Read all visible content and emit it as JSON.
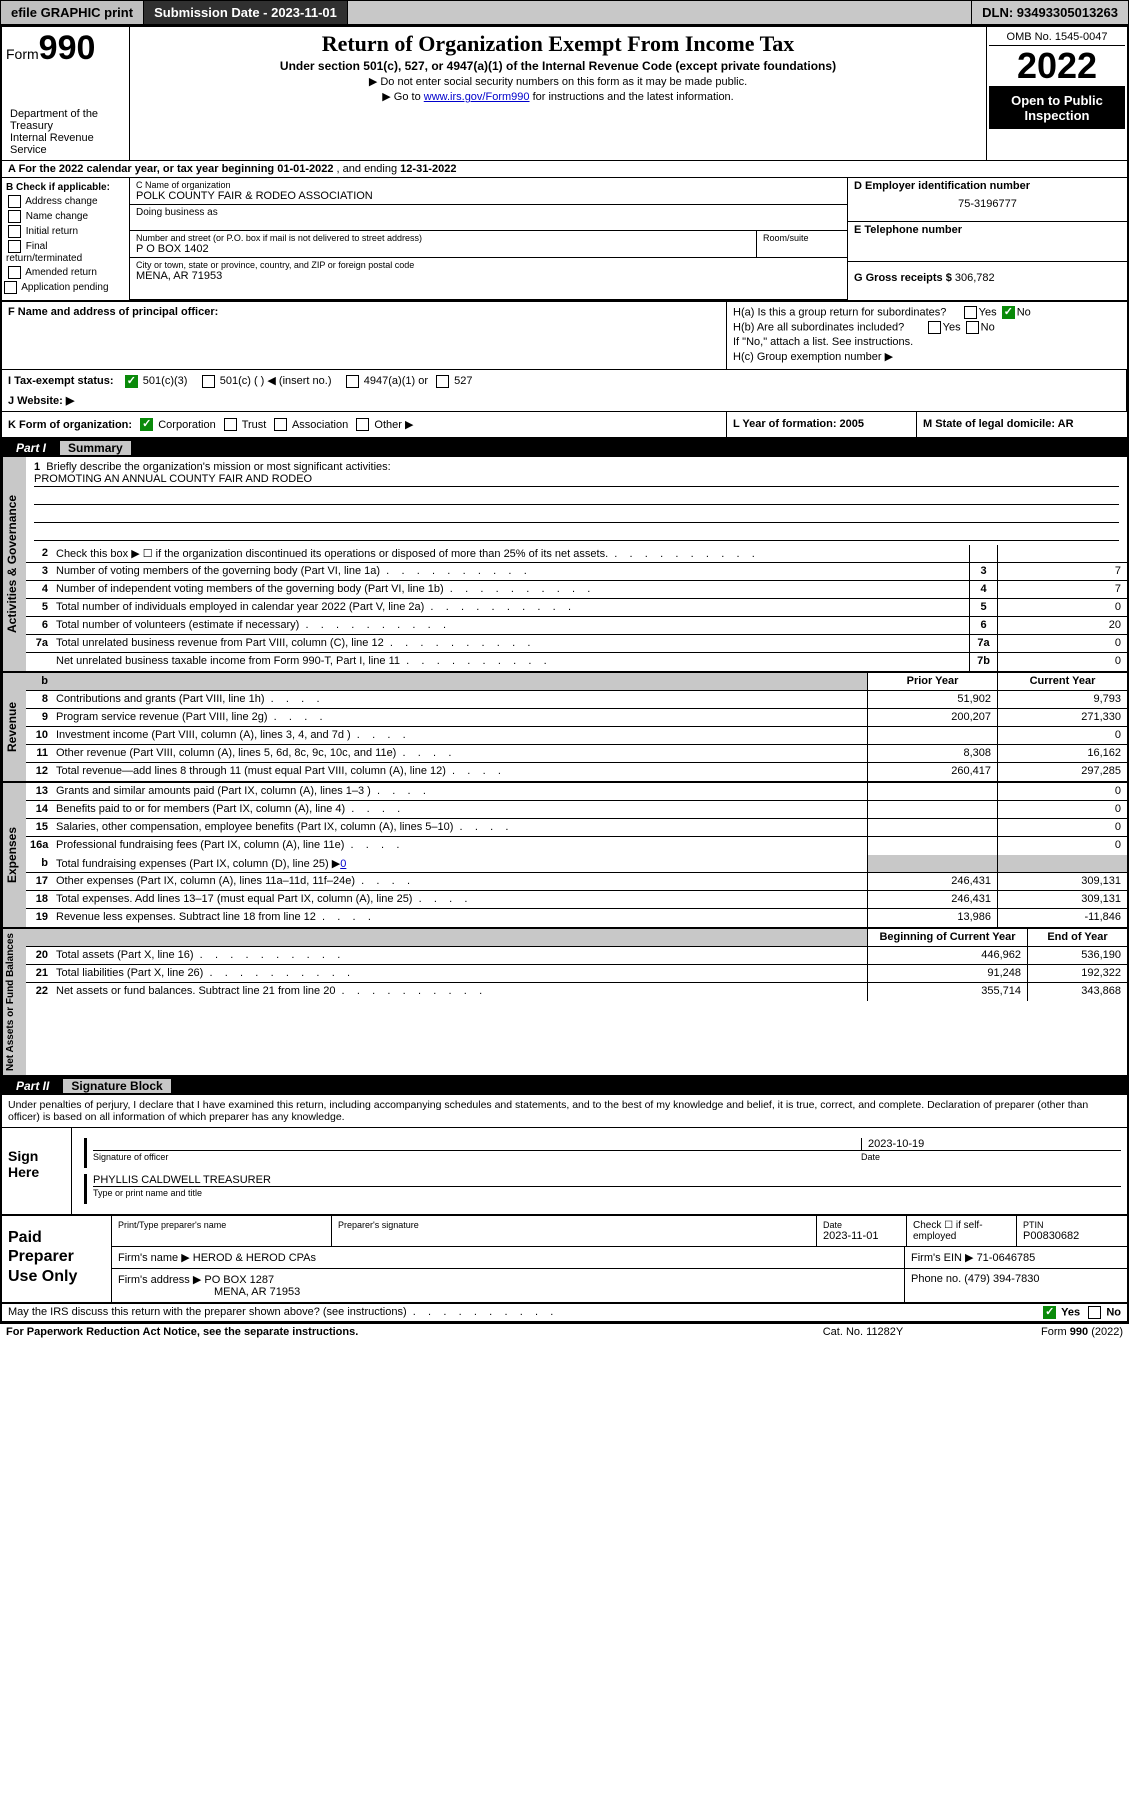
{
  "topbar": {
    "efile": "efile GRAPHIC print",
    "submission_label": "Submission Date - 2023-11-01",
    "dln_label": "DLN: 93493305013263"
  },
  "header": {
    "form_label": "Form",
    "form_number": "990",
    "dept": "Department of the Treasury\nInternal Revenue Service",
    "title": "Return of Organization Exempt From Income Tax",
    "subtitle": "Under section 501(c), 527, or 4947(a)(1) of the Internal Revenue Code (except private foundations)",
    "note1": "▶ Do not enter social security numbers on this form as it may be made public.",
    "note2_pre": "▶ Go to ",
    "note2_link": "www.irs.gov/Form990",
    "note2_post": " for instructions and the latest information.",
    "omb": "OMB No. 1545-0047",
    "year": "2022",
    "open": "Open to Public Inspection"
  },
  "sectionA": {
    "a_text_pre": "A For the 2022 calendar year, or tax year beginning ",
    "a_begin": "01-01-2022",
    "a_mid": " , and ending ",
    "a_end": "12-31-2022",
    "b_label": "B Check if applicable:",
    "b_items": [
      "Address change",
      "Name change",
      "Initial return",
      "Final return/terminated",
      "Amended return",
      "Application pending"
    ],
    "c_label": "C Name of organization",
    "c_name": "POLK COUNTY FAIR & RODEO ASSOCIATION",
    "dba_label": "Doing business as",
    "addr_label": "Number and street (or P.O. box if mail is not delivered to street address)",
    "room_label": "Room/suite",
    "addr": "P O BOX 1402",
    "city_label": "City or town, state or province, country, and ZIP or foreign postal code",
    "city": "MENA, AR  71953",
    "d_label": "D Employer identification number",
    "d_ein": "75-3196777",
    "e_label": "E Telephone number",
    "g_label": "G Gross receipts $",
    "g_val": "306,782",
    "f_label": "F  Name and address of principal officer:",
    "ha": "H(a)  Is this a group return for subordinates?",
    "hb": "H(b)  Are all subordinates included?",
    "hb_note": "If \"No,\" attach a list. See instructions.",
    "hc": "H(c)  Group exemption number ▶",
    "yes": "Yes",
    "no": "No",
    "i_label": "I    Tax-exempt status:",
    "i_501c3": "501(c)(3)",
    "i_501c": "501(c) (  ) ◀ (insert no.)",
    "i_4947": "4947(a)(1) or",
    "i_527": "527",
    "j_label": "J    Website: ▶",
    "k_label": "K Form of organization:",
    "k_corp": "Corporation",
    "k_trust": "Trust",
    "k_assoc": "Association",
    "k_other": "Other ▶",
    "l_label": "L Year of formation: 2005",
    "m_label": "M State of legal domicile: AR"
  },
  "part1": {
    "label": "Part I",
    "title": "Summary",
    "q1_label": "1",
    "q1": "Briefly describe the organization's mission or most significant activities:",
    "q1_ans": "PROMOTING AN ANNUAL COUNTY FAIR AND RODEO",
    "rows_ag": [
      {
        "n": "2",
        "d": "Check this box ▶ ☐  if the organization discontinued its operations or disposed of more than 25% of its net assets.",
        "nb": "",
        "v": ""
      },
      {
        "n": "3",
        "d": "Number of voting members of the governing body (Part VI, line 1a)",
        "nb": "3",
        "v": "7"
      },
      {
        "n": "4",
        "d": "Number of independent voting members of the governing body (Part VI, line 1b)",
        "nb": "4",
        "v": "7"
      },
      {
        "n": "5",
        "d": "Total number of individuals employed in calendar year 2022 (Part V, line 2a)",
        "nb": "5",
        "v": "0"
      },
      {
        "n": "6",
        "d": "Total number of volunteers (estimate if necessary)",
        "nb": "6",
        "v": "20"
      },
      {
        "n": "7a",
        "d": "Total unrelated business revenue from Part VIII, column (C), line 12",
        "nb": "7a",
        "v": "0"
      },
      {
        "n": "",
        "d": "Net unrelated business taxable income from Form 990-T, Part I, line 11",
        "nb": "7b",
        "v": "0"
      }
    ],
    "vert_ag": "Activities & Governance",
    "vert_rev": "Revenue",
    "vert_exp": "Expenses",
    "vert_net": "Net Assets or Fund Balances",
    "head_b": "b",
    "head_prior": "Prior Year",
    "head_curr": "Current Year",
    "rows_rev": [
      {
        "n": "8",
        "d": "Contributions and grants (Part VIII, line 1h)",
        "p": "51,902",
        "c": "9,793"
      },
      {
        "n": "9",
        "d": "Program service revenue (Part VIII, line 2g)",
        "p": "200,207",
        "c": "271,330"
      },
      {
        "n": "10",
        "d": "Investment income (Part VIII, column (A), lines 3, 4, and 7d )",
        "p": "",
        "c": "0"
      },
      {
        "n": "11",
        "d": "Other revenue (Part VIII, column (A), lines 5, 6d, 8c, 9c, 10c, and 11e)",
        "p": "8,308",
        "c": "16,162"
      },
      {
        "n": "12",
        "d": "Total revenue—add lines 8 through 11 (must equal Part VIII, column (A), line 12)",
        "p": "260,417",
        "c": "297,285"
      }
    ],
    "rows_exp": [
      {
        "n": "13",
        "d": "Grants and similar amounts paid (Part IX, column (A), lines 1–3 )",
        "p": "",
        "c": "0"
      },
      {
        "n": "14",
        "d": "Benefits paid to or for members (Part IX, column (A), line 4)",
        "p": "",
        "c": "0"
      },
      {
        "n": "15",
        "d": "Salaries, other compensation, employee benefits (Part IX, column (A), lines 5–10)",
        "p": "",
        "c": "0"
      },
      {
        "n": "16a",
        "d": "Professional fundraising fees (Part IX, column (A), line 11e)",
        "p": "",
        "c": "0"
      }
    ],
    "row_16b_n": "b",
    "row_16b": "Total fundraising expenses (Part IX, column (D), line 25) ▶",
    "row_16b_link": "0",
    "rows_exp2": [
      {
        "n": "17",
        "d": "Other expenses (Part IX, column (A), lines 11a–11d, 11f–24e)",
        "p": "246,431",
        "c": "309,131"
      },
      {
        "n": "18",
        "d": "Total expenses. Add lines 13–17 (must equal Part IX, column (A), line 25)",
        "p": "246,431",
        "c": "309,131"
      },
      {
        "n": "19",
        "d": "Revenue less expenses. Subtract line 18 from line 12",
        "p": "13,986",
        "c": "-11,846"
      }
    ],
    "head_begin": "Beginning of Current Year",
    "head_end": "End of Year",
    "rows_net": [
      {
        "n": "20",
        "d": "Total assets (Part X, line 16)",
        "p": "446,962",
        "c": "536,190"
      },
      {
        "n": "21",
        "d": "Total liabilities (Part X, line 26)",
        "p": "91,248",
        "c": "192,322"
      },
      {
        "n": "22",
        "d": "Net assets or fund balances. Subtract line 21 from line 20",
        "p": "355,714",
        "c": "343,868"
      }
    ]
  },
  "part2": {
    "label": "Part II",
    "title": "Signature Block",
    "penalty": "Under penalties of perjury, I declare that I have examined this return, including accompanying schedules and statements, and to the best of my knowledge and belief, it is true, correct, and complete. Declaration of preparer (other than officer) is based on all information of which preparer has any knowledge.",
    "sign_here": "Sign Here",
    "sig_officer": "Signature of officer",
    "sig_date": "Date",
    "sig_date_val": "2023-10-19",
    "sig_name": "PHYLLIS CALDWELL TREASURER",
    "sig_name_cap": "Type or print name and title",
    "paid_label": "Paid Preparer Use Only",
    "paid_h1": "Print/Type preparer's name",
    "paid_h2": "Preparer's signature",
    "paid_h3": "Date",
    "paid_h3v": "2023-11-01",
    "paid_h4": "Check ☐ if self-employed",
    "paid_h5": "PTIN",
    "paid_h5v": "P00830682",
    "firm_name_l": "Firm's name    ▶",
    "firm_name": "HEROD & HEROD CPAs",
    "firm_ein_l": "Firm's EIN ▶",
    "firm_ein": "71-0646785",
    "firm_addr_l": "Firm's address ▶",
    "firm_addr1": "PO BOX 1287",
    "firm_addr2": "MENA, AR  71953",
    "phone_l": "Phone no.",
    "phone": "(479) 394-7830",
    "may": "May the IRS discuss this return with the preparer shown above? (see instructions)",
    "foot_paper": "For Paperwork Reduction Act Notice, see the separate instructions.",
    "foot_cat": "Cat. No. 11282Y",
    "foot_form": "Form 990 (2022)"
  }
}
